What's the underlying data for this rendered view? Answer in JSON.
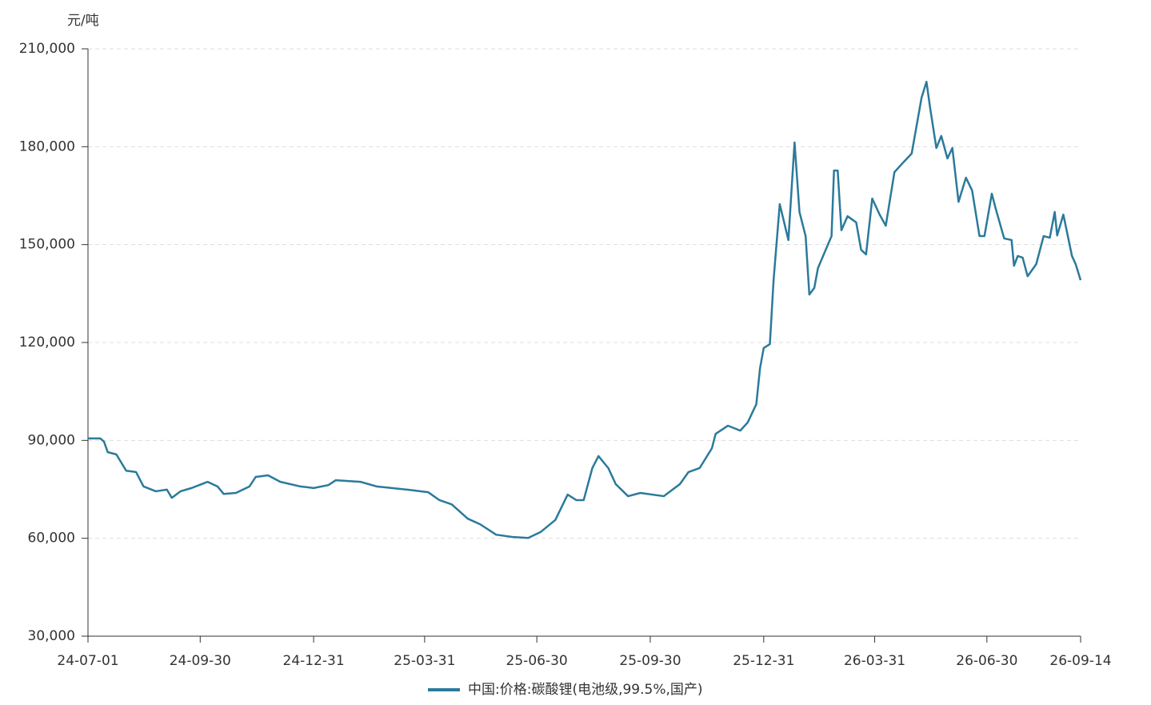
{
  "chart_data": {
    "type": "line",
    "y_label": "元/吨",
    "x": [
      "24-07-01",
      "24-07-11",
      "24-07-14",
      "24-07-17",
      "24-07-24",
      "24-08-01",
      "24-08-09",
      "24-08-15",
      "24-08-25",
      "24-09-03",
      "24-09-07",
      "24-09-14",
      "24-09-23",
      "24-10-06",
      "24-10-14",
      "24-10-19",
      "24-10-29",
      "24-11-09",
      "24-11-14",
      "24-11-24",
      "24-12-04",
      "24-12-20",
      "24-12-31",
      "25-01-12",
      "25-01-18",
      "25-02-07",
      "25-02-20",
      "25-03-17",
      "25-04-03",
      "25-04-12",
      "25-04-22",
      "25-05-05",
      "25-05-15",
      "25-05-28",
      "25-06-10",
      "25-06-23",
      "25-07-03",
      "25-07-15",
      "25-07-25",
      "25-08-01",
      "25-08-07",
      "25-08-14",
      "25-08-19",
      "25-08-27",
      "25-09-02",
      "25-09-12",
      "25-09-22",
      "25-10-11",
      "25-10-24",
      "25-10-31",
      "25-11-09",
      "25-11-19",
      "25-11-22",
      "25-12-02",
      "25-12-12",
      "25-12-18",
      "25-12-25",
      "25-12-28",
      "25-12-31",
      "26-01-05",
      "26-01-08",
      "26-01-13",
      "26-01-20",
      "26-01-25",
      "26-01-29",
      "26-02-03",
      "26-02-06",
      "26-02-10",
      "26-02-13",
      "26-02-24",
      "26-02-26",
      "26-03-01",
      "26-03-04",
      "26-03-09",
      "26-03-16",
      "26-03-20",
      "26-03-24",
      "26-03-29",
      "26-04-04",
      "26-04-09",
      "26-04-16",
      "26-04-22",
      "26-04-30",
      "26-05-08",
      "26-05-12",
      "26-05-15",
      "26-05-20",
      "26-05-24",
      "26-05-29",
      "26-06-02",
      "26-06-07",
      "26-06-13",
      "26-06-18",
      "26-06-24",
      "26-06-28",
      "26-07-04",
      "26-07-07",
      "26-07-14",
      "26-07-20",
      "26-07-22",
      "26-07-25",
      "26-07-29",
      "26-08-02",
      "26-08-09",
      "26-08-15",
      "26-08-20",
      "26-08-24",
      "26-08-26",
      "26-08-31",
      "26-09-07",
      "26-09-10",
      "26-09-14"
    ],
    "series": [
      {
        "name": "中国:价格:碳酸锂(电池级,99.5%,国产)",
        "color": "#2b7a9b",
        "values": [
          90600,
          90600,
          89600,
          86400,
          85700,
          80700,
          80300,
          75900,
          74400,
          74900,
          72400,
          74400,
          75400,
          77300,
          75900,
          73600,
          73900,
          75900,
          78800,
          79300,
          77300,
          75900,
          75400,
          76300,
          77800,
          77300,
          75900,
          74900,
          74100,
          71700,
          70400,
          66000,
          64300,
          61100,
          60400,
          60100,
          61900,
          65600,
          73400,
          71700,
          71700,
          81500,
          85200,
          81500,
          76600,
          72900,
          73900,
          72900,
          76600,
          80300,
          81500,
          87600,
          92000,
          94500,
          93000,
          95500,
          101100,
          112100,
          118300,
          119500,
          139100,
          162400,
          151400,
          181300,
          160000,
          152600,
          134700,
          136700,
          142800,
          152600,
          172700,
          172700,
          154400,
          158700,
          156800,
          148400,
          147000,
          164100,
          159200,
          155800,
          172200,
          174700,
          177900,
          195000,
          199900,
          191800,
          179600,
          183300,
          176400,
          179600,
          163100,
          170500,
          166600,
          152600,
          152600,
          165600,
          161200,
          151900,
          151400,
          143500,
          146500,
          146000,
          140300,
          144000,
          152600,
          152100,
          160000,
          152800,
          159200,
          146500,
          144000,
          139100
        ]
      }
    ],
    "xlim": [
      "24-07-01",
      "26-09-14"
    ],
    "xticks": [
      "24-07-01",
      "24-09-30",
      "24-12-31",
      "25-03-31",
      "25-06-30",
      "25-09-30",
      "25-12-31",
      "26-03-31",
      "26-06-30",
      "26-09-14"
    ],
    "ylim": [
      30000,
      210000
    ],
    "yticks": [
      {
        "value": 30000,
        "label": "30,000"
      },
      {
        "value": 60000,
        "label": "60,000"
      },
      {
        "value": 90000,
        "label": "90,000"
      },
      {
        "value": 120000,
        "label": "120,000"
      },
      {
        "value": 150000,
        "label": "150,000"
      },
      {
        "value": 180000,
        "label": "180,000"
      },
      {
        "value": 210000,
        "label": "210,000"
      }
    ],
    "grid": true,
    "legend": "bottom"
  }
}
